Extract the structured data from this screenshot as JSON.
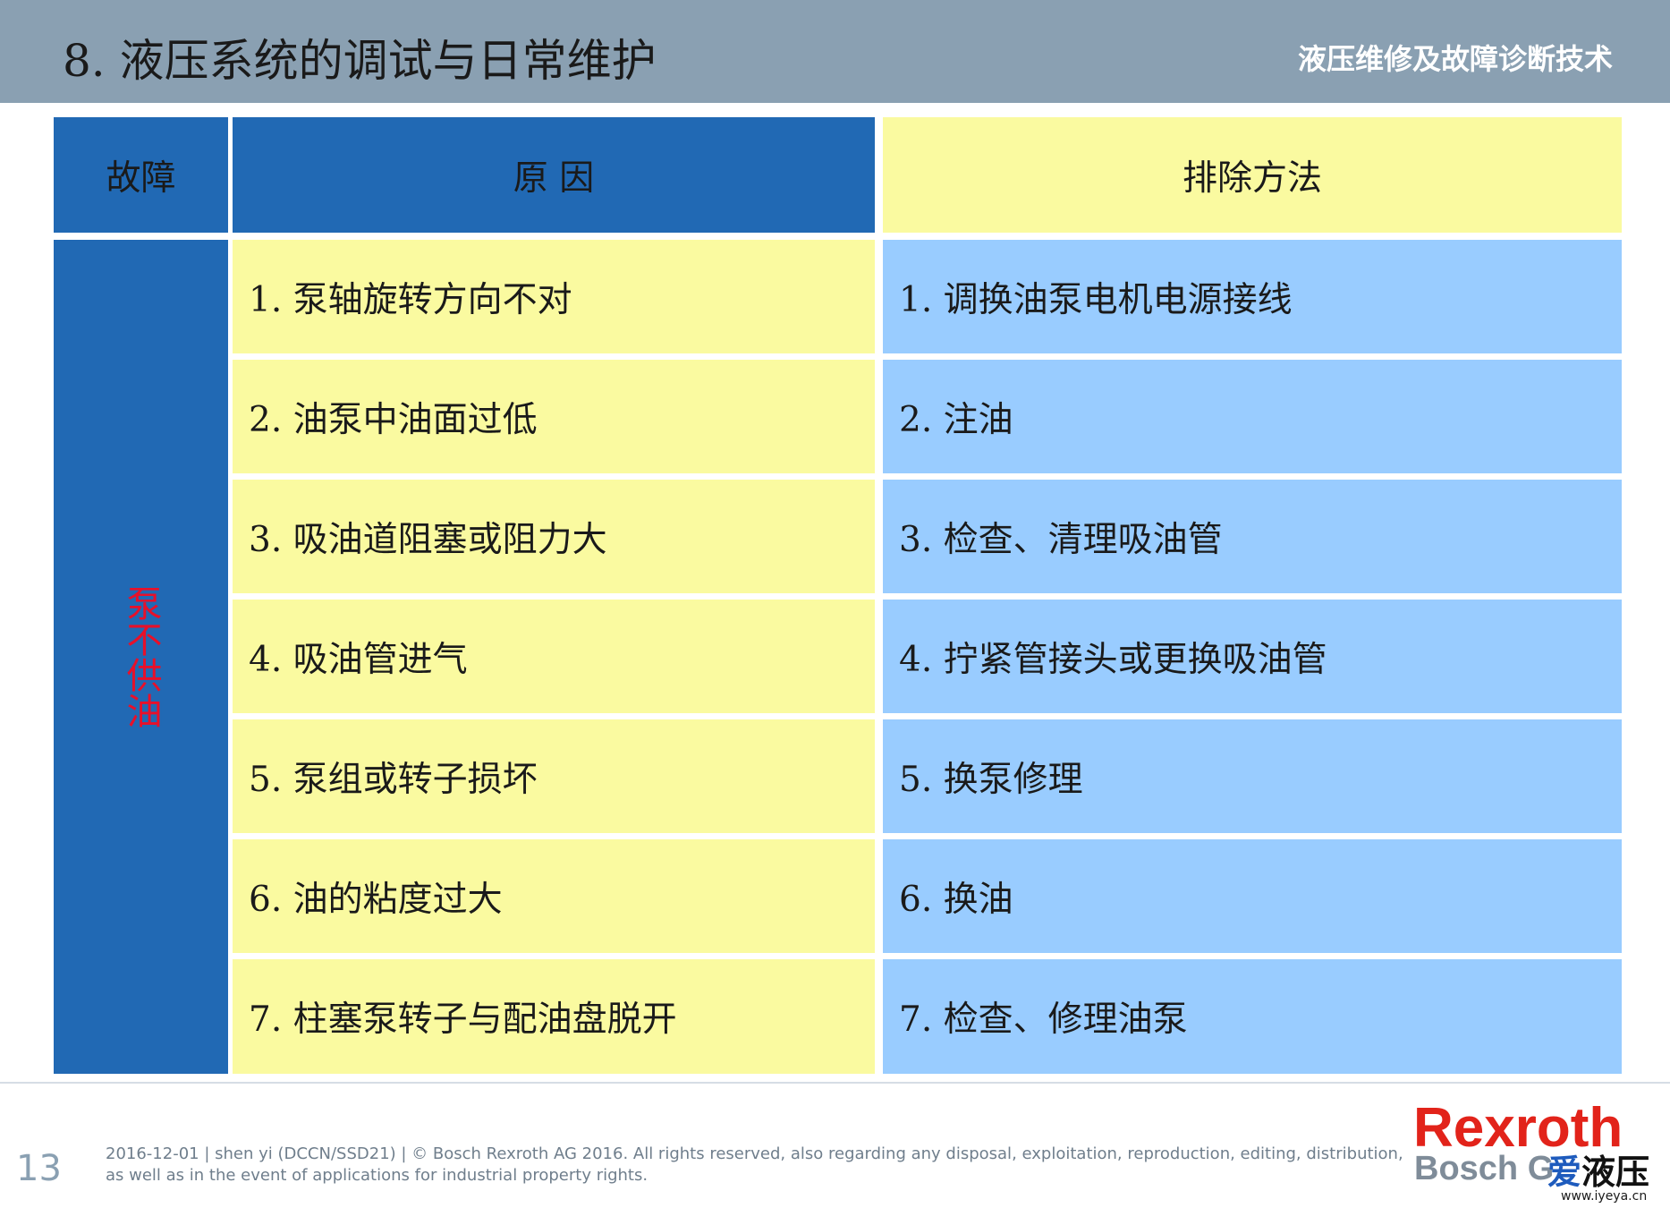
{
  "header": {
    "title": "8. 液压系统的调试与日常维护",
    "subtitle": "液压维修及故障诊断技术"
  },
  "table": {
    "headers": {
      "fault": "故障",
      "cause": "原 因",
      "remedy": "排除方法"
    },
    "fault_label": "泵不供油",
    "rows": [
      {
        "cause": "1. 泵轴旋转方向不对",
        "remedy": "1. 调换油泵电机电源接线"
      },
      {
        "cause": "2. 油泵中油面过低",
        "remedy": "2. 注油"
      },
      {
        "cause": "3. 吸油道阻塞或阻力大",
        "remedy": "3. 检查、清理吸油管"
      },
      {
        "cause": "4. 吸油管进气",
        "remedy": "4. 拧紧管接头或更换吸油管"
      },
      {
        "cause": "5. 泵组或转子损坏",
        "remedy": "5. 换泵修理"
      },
      {
        "cause": "6. 油的粘度过大",
        "remedy": "6. 换油"
      },
      {
        "cause": "7. 柱塞泵转子与配油盘脱开",
        "remedy": "7. 检查、修理油泵"
      }
    ]
  },
  "footer": {
    "page_number": "13",
    "line1": "2016-12-01 | shen yi (DCCN/SSD21) | © Bosch Rexroth AG 2016. All rights reserved, also regarding any disposal, exploitation, reproduction, editing, distribution,",
    "line2": "as well as in the event of applications for industrial property rights.",
    "brand": "Rexroth",
    "brand_sub": "Bosch G",
    "watermark_a": "爱",
    "watermark_b": "液压",
    "watermark_url": "www.iyeya.cn"
  },
  "colors": {
    "header_bar": "#8aa0b2",
    "blue_cell": "#2169b4",
    "yellow_cell": "#fafaa0",
    "lightblue_cell": "#99ccff",
    "fault_text": "#e8102a",
    "brand_red": "#e2231a"
  }
}
